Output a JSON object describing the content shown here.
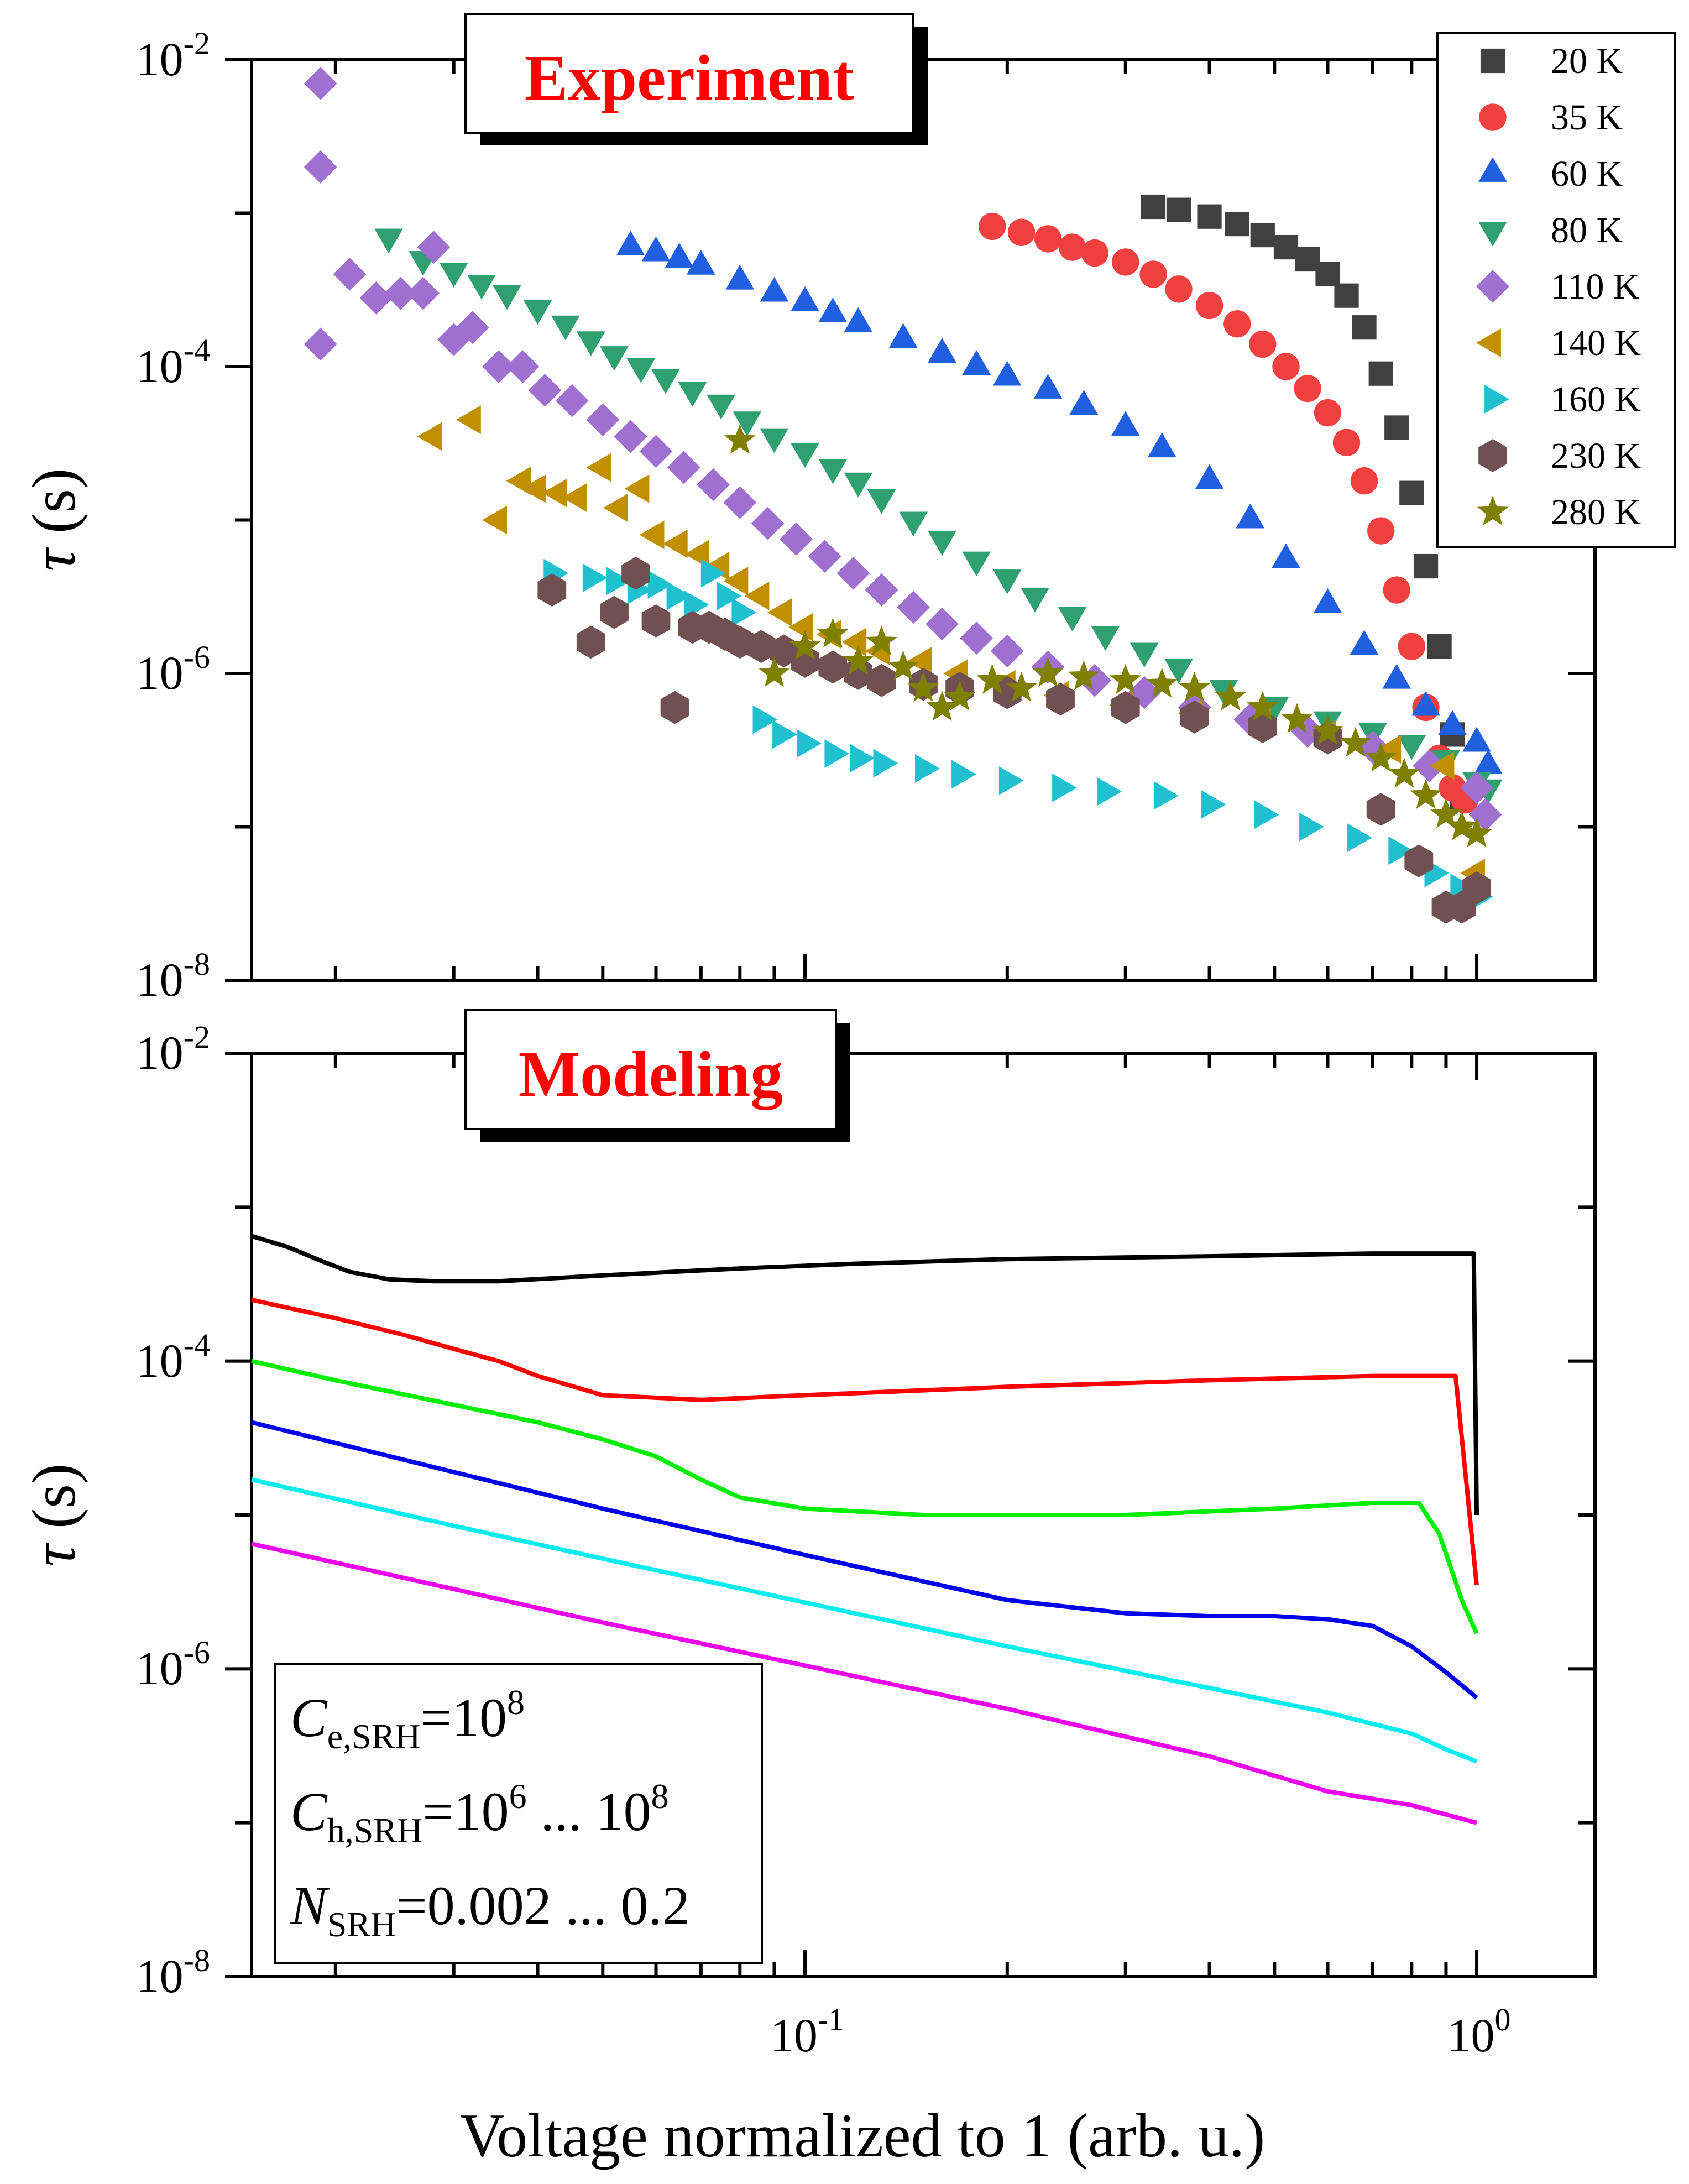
{
  "figure": {
    "x_axis_label": "Voltage normalized to 1 (arb. u.)",
    "x_tick_labels": [
      {
        "base": "10",
        "exp": "-1",
        "value": 0.1
      },
      {
        "base": "10",
        "exp": "0",
        "value": 1
      }
    ],
    "y_tick_labels": [
      {
        "base": "10",
        "exp": "-2",
        "value": 0.01
      },
      {
        "base": "10",
        "exp": "-4",
        "value": 0.0001
      },
      {
        "base": "10",
        "exp": "-6",
        "value": 1e-06
      },
      {
        "base": "10",
        "exp": "-8",
        "value": 1e-08
      }
    ]
  },
  "chart_data": [
    {
      "type": "scatter",
      "title": "Experiment",
      "xlabel": "Voltage normalized to 1 (arb. u.)",
      "ylabel_symbol": "τ",
      "ylabel_unit": "(s)",
      "xscale": "log",
      "yscale": "log",
      "xlim": [
        0.015,
        1.5
      ],
      "ylim": [
        1e-08,
        0.01
      ],
      "legend_position": "top-right",
      "series": [
        {
          "name": "20 K",
          "marker": "square",
          "color": "#404040",
          "x": [
            0.33,
            0.36,
            0.4,
            0.44,
            0.48,
            0.52,
            0.56,
            0.6,
            0.64,
            0.68,
            0.72,
            0.76,
            0.8,
            0.84,
            0.88,
            0.92,
            0.95
          ],
          "y": [
            0.0011,
            0.00105,
            0.00095,
            0.00085,
            0.00072,
            0.0006,
            0.0005,
            0.0004,
            0.00029,
            0.00018,
            9e-05,
            4e-05,
            1.5e-05,
            5e-06,
            1.5e-06,
            4e-07,
            1.5e-07
          ]
        },
        {
          "name": "35 K",
          "marker": "circle",
          "color": "#f04040",
          "x": [
            0.19,
            0.21,
            0.23,
            0.25,
            0.27,
            0.3,
            0.33,
            0.36,
            0.4,
            0.44,
            0.48,
            0.52,
            0.56,
            0.6,
            0.64,
            0.68,
            0.72,
            0.76,
            0.8,
            0.84,
            0.88,
            0.92,
            0.96
          ],
          "y": [
            0.00082,
            0.00075,
            0.00068,
            0.0006,
            0.00055,
            0.00048,
            0.0004,
            0.00032,
            0.00025,
            0.00019,
            0.00014,
            0.0001,
            7.2e-05,
            5e-05,
            3.2e-05,
            1.8e-05,
            8.5e-06,
            3.5e-06,
            1.5e-06,
            6e-07,
            2.8e-07,
            1.8e-07,
            1.5e-07
          ]
        },
        {
          "name": "60 K",
          "marker": "triangle-up",
          "color": "#2060e0",
          "x": [
            0.055,
            0.06,
            0.065,
            0.07,
            0.08,
            0.09,
            0.1,
            0.11,
            0.12,
            0.14,
            0.16,
            0.18,
            0.2,
            0.23,
            0.26,
            0.3,
            0.34,
            0.4,
            0.46,
            0.52,
            0.6,
            0.68,
            0.76,
            0.84,
            0.92,
            1.0,
            1.04
          ],
          "y": [
            0.0006,
            0.00055,
            0.0005,
            0.00045,
            0.00036,
            0.0003,
            0.00026,
            0.00022,
            0.00019,
            0.00015,
            0.00012,
            0.0001,
            8.5e-05,
            7e-05,
            5.5e-05,
            4e-05,
            2.9e-05,
            1.8e-05,
            1e-05,
            5.5e-06,
            2.8e-06,
            1.5e-06,
            9e-07,
            6e-07,
            4.5e-07,
            3.5e-07,
            2.5e-07
          ]
        },
        {
          "name": "80 K",
          "marker": "triangle-down",
          "color": "#30a070",
          "x": [
            0.024,
            0.027,
            0.03,
            0.033,
            0.036,
            0.04,
            0.044,
            0.048,
            0.052,
            0.057,
            0.062,
            0.068,
            0.075,
            0.082,
            0.09,
            0.1,
            0.11,
            0.12,
            0.13,
            0.145,
            0.16,
            0.18,
            0.2,
            0.22,
            0.25,
            0.28,
            0.32,
            0.36,
            0.42,
            0.5,
            0.6,
            0.7,
            0.8,
            0.9,
            1.0,
            1.04
          ],
          "y": [
            0.0007,
            0.0005,
            0.00042,
            0.00035,
            0.0003,
            0.00024,
            0.00019,
            0.00015,
            0.00012,
            0.0001,
            8.5e-05,
            7e-05,
            5.8e-05,
            4.5e-05,
            3.5e-05,
            2.8e-05,
            2.2e-05,
            1.8e-05,
            1.4e-05,
            1e-05,
            7.5e-06,
            5.5e-06,
            4.2e-06,
            3.2e-06,
            2.4e-06,
            1.8e-06,
            1.4e-06,
            1.1e-06,
            8e-07,
            6.2e-07,
            5e-07,
            4.2e-07,
            3.5e-07,
            2.8e-07,
            2e-07,
            1.8e-07
          ]
        },
        {
          "name": "110 K",
          "marker": "diamond",
          "color": "#a070d0",
          "x": [
            0.019,
            0.019,
            0.019,
            0.021,
            0.023,
            0.025,
            0.027,
            0.028,
            0.03,
            0.032,
            0.035,
            0.038,
            0.041,
            0.045,
            0.05,
            0.055,
            0.06,
            0.066,
            0.073,
            0.08,
            0.088,
            0.097,
            0.107,
            0.118,
            0.13,
            0.145,
            0.16,
            0.18,
            0.2,
            0.23,
            0.27,
            0.32,
            0.38,
            0.46,
            0.56,
            0.7,
            0.85,
            1.0,
            1.03
          ],
          "y": [
            0.007,
            0.002,
            0.00014,
            0.0004,
            0.00028,
            0.0003,
            0.0003,
            0.0006,
            0.00015,
            0.00018,
            0.0001,
            0.0001,
            7e-05,
            6e-05,
            4.5e-05,
            3.5e-05,
            2.8e-05,
            2.2e-05,
            1.7e-05,
            1.3e-05,
            9.5e-06,
            7.5e-06,
            5.8e-06,
            4.5e-06,
            3.5e-06,
            2.7e-06,
            2.1e-06,
            1.7e-06,
            1.4e-06,
            1.1e-06,
            9e-07,
            7.5e-07,
            6e-07,
            5e-07,
            4.2e-07,
            3.3e-07,
            2.5e-07,
            1.8e-07,
            1.2e-07
          ]
        },
        {
          "name": "140 K",
          "marker": "triangle-left",
          "color": "#c09000",
          "x": [
            0.028,
            0.032,
            0.035,
            0.038,
            0.04,
            0.043,
            0.046,
            0.05,
            0.053,
            0.057,
            0.06,
            0.065,
            0.07,
            0.075,
            0.08,
            0.086,
            0.093,
            0.1,
            0.11,
            0.12,
            0.13,
            0.15,
            0.17,
            0.2,
            0.24,
            0.3,
            0.38,
            0.48,
            0.6,
            0.75,
            0.9,
            1.0
          ],
          "y": [
            3.5e-05,
            4.5e-05,
            1e-05,
            1.8e-05,
            1.6e-05,
            1.5e-05,
            1.4e-05,
            2.2e-05,
            1.2e-05,
            1.6e-05,
            8e-06,
            7e-06,
            6e-06,
            5e-06,
            4e-06,
            3.2e-06,
            2.5e-06,
            2e-06,
            1.8e-06,
            1.6e-06,
            1.4e-06,
            1.2e-06,
            1e-06,
            8.5e-07,
            7.2e-07,
            6.2e-07,
            5.5e-07,
            4.8e-07,
            4e-07,
            3.2e-07,
            2.5e-07,
            5e-08
          ]
        },
        {
          "name": "160 K",
          "marker": "triangle-right",
          "color": "#20c0d0",
          "x": [
            0.042,
            0.048,
            0.052,
            0.056,
            0.06,
            0.064,
            0.068,
            0.072,
            0.076,
            0.08,
            0.086,
            0.092,
            0.1,
            0.11,
            0.12,
            0.13,
            0.15,
            0.17,
            0.2,
            0.24,
            0.28,
            0.34,
            0.4,
            0.48,
            0.56,
            0.66,
            0.76,
            0.86,
            0.94,
            1.0
          ],
          "y": [
            4.5e-06,
            4.2e-06,
            4e-06,
            3.5e-06,
            3.8e-06,
            3.2e-06,
            2.8e-06,
            4.5e-06,
            3.2e-06,
            2.5e-06,
            5e-07,
            4e-07,
            3.5e-07,
            3e-07,
            2.8e-07,
            2.6e-07,
            2.4e-07,
            2.2e-07,
            2e-07,
            1.8e-07,
            1.7e-07,
            1.6e-07,
            1.4e-07,
            1.2e-07,
            1e-07,
            8.5e-08,
            7e-08,
            5e-08,
            4e-08,
            3.5e-08
          ]
        },
        {
          "name": "230 K",
          "marker": "hexagon",
          "color": "#705050",
          "x": [
            0.042,
            0.048,
            0.052,
            0.056,
            0.06,
            0.064,
            0.068,
            0.072,
            0.076,
            0.08,
            0.086,
            0.093,
            0.1,
            0.11,
            0.12,
            0.13,
            0.15,
            0.17,
            0.2,
            0.24,
            0.3,
            0.38,
            0.48,
            0.6,
            0.72,
            0.82,
            0.9,
            0.95,
            1.0
          ],
          "y": [
            3.5e-06,
            1.6e-06,
            2.5e-06,
            4.5e-06,
            2.2e-06,
            6e-07,
            2e-06,
            2e-06,
            1.8e-06,
            1.6e-06,
            1.5e-06,
            1.4e-06,
            1.2e-06,
            1.1e-06,
            1e-06,
            9e-07,
            8.5e-07,
            8e-07,
            7.5e-07,
            6.8e-07,
            6e-07,
            5.2e-07,
            4.5e-07,
            3.8e-07,
            1.3e-07,
            6e-08,
            3e-08,
            3e-08,
            4e-08
          ]
        },
        {
          "name": "280 K",
          "marker": "star",
          "color": "#808000",
          "x": [
            0.08,
            0.09,
            0.1,
            0.11,
            0.12,
            0.13,
            0.14,
            0.15,
            0.16,
            0.17,
            0.19,
            0.21,
            0.23,
            0.26,
            0.3,
            0.34,
            0.38,
            0.43,
            0.48,
            0.54,
            0.6,
            0.66,
            0.72,
            0.78,
            0.84,
            0.9,
            0.95,
            1.0
          ],
          "y": [
            3.3e-05,
            1e-06,
            1.5e-06,
            1.8e-06,
            1.2e-06,
            1.6e-06,
            1.1e-06,
            8e-07,
            6e-07,
            7e-07,
            9e-07,
            8e-07,
            1e-06,
            9.5e-07,
            9e-07,
            8.5e-07,
            8e-07,
            7e-07,
            6e-07,
            5e-07,
            4.2e-07,
            3.5e-07,
            2.8e-07,
            2.2e-07,
            1.6e-07,
            1.2e-07,
            1e-07,
            9e-08
          ]
        }
      ]
    },
    {
      "type": "line",
      "title": "Modeling",
      "xlabel": "Voltage normalized to 1 (arb. u.)",
      "ylabel_symbol": "τ",
      "ylabel_unit": "(s)",
      "xscale": "log",
      "yscale": "log",
      "xlim": [
        0.015,
        1.5
      ],
      "ylim": [
        1e-08,
        0.01
      ],
      "annotation": {
        "line1": {
          "symbol": "C",
          "sub": "e,SRH",
          "text": "=10",
          "sup": "8"
        },
        "line2": {
          "symbol": "C",
          "sub": "h,SRH",
          "text": "=10",
          "sup": "6",
          "text2": " ... 10",
          "sup2": "8"
        },
        "line3": {
          "symbol": "N",
          "sub": "SRH",
          "text": "=0.002 ... 0.2"
        }
      },
      "series": [
        {
          "name": "black",
          "color": "#000000",
          "x": [
            0.015,
            0.017,
            0.019,
            0.021,
            0.024,
            0.028,
            0.035,
            0.05,
            0.08,
            0.12,
            0.2,
            0.4,
            0.7,
            0.99,
            1.0
          ],
          "y": [
            0.00065,
            0.00055,
            0.00045,
            0.00038,
            0.00034,
            0.00033,
            0.00033,
            0.00036,
            0.0004,
            0.00043,
            0.00046,
            0.00048,
            0.0005,
            0.0005,
            1e-05
          ]
        },
        {
          "name": "red",
          "color": "#ff0000",
          "x": [
            0.015,
            0.02,
            0.025,
            0.03,
            0.035,
            0.04,
            0.05,
            0.07,
            0.1,
            0.2,
            0.4,
            0.7,
            0.93,
            1.0
          ],
          "y": [
            0.00025,
            0.00019,
            0.00015,
            0.00012,
            0.0001,
            8e-05,
            6e-05,
            5.6e-05,
            6e-05,
            6.8e-05,
            7.5e-05,
            8e-05,
            8e-05,
            3.5e-06
          ]
        },
        {
          "name": "green",
          "color": "#00ee00",
          "x": [
            0.015,
            0.02,
            0.03,
            0.04,
            0.05,
            0.06,
            0.07,
            0.08,
            0.1,
            0.15,
            0.2,
            0.3,
            0.5,
            0.7,
            0.82,
            0.88,
            0.95,
            1.0
          ],
          "y": [
            0.0001,
            7.5e-05,
            5.2e-05,
            4e-05,
            3.1e-05,
            2.4e-05,
            1.7e-05,
            1.3e-05,
            1.1e-05,
            1e-05,
            1e-05,
            1e-05,
            1.1e-05,
            1.2e-05,
            1.2e-05,
            7.5e-06,
            2.8e-06,
            1.7e-06
          ]
        },
        {
          "name": "blue",
          "color": "#0000ee",
          "x": [
            0.015,
            0.03,
            0.05,
            0.1,
            0.2,
            0.3,
            0.4,
            0.5,
            0.6,
            0.7,
            0.8,
            0.9,
            1.0
          ],
          "y": [
            4e-05,
            1.9e-05,
            1.1e-05,
            5.5e-06,
            2.8e-06,
            2.3e-06,
            2.2e-06,
            2.2e-06,
            2.1e-06,
            1.9e-06,
            1.4e-06,
            9.5e-07,
            6.5e-07
          ]
        },
        {
          "name": "cyan",
          "color": "#00eeee",
          "x": [
            0.015,
            0.03,
            0.05,
            0.1,
            0.2,
            0.4,
            0.6,
            0.8,
            0.9,
            1.0
          ],
          "y": [
            1.7e-05,
            8.5e-06,
            5.2e-06,
            2.7e-06,
            1.4e-06,
            7.5e-07,
            5.2e-07,
            3.8e-07,
            3e-07,
            2.5e-07
          ]
        },
        {
          "name": "magenta",
          "color": "#ee00ee",
          "x": [
            0.015,
            0.03,
            0.05,
            0.1,
            0.2,
            0.4,
            0.6,
            0.8,
            1.0
          ],
          "y": [
            6.5e-06,
            3.3e-06,
            2e-06,
            1.05e-06,
            5.5e-07,
            2.7e-07,
            1.6e-07,
            1.3e-07,
            1e-07
          ]
        }
      ]
    }
  ]
}
